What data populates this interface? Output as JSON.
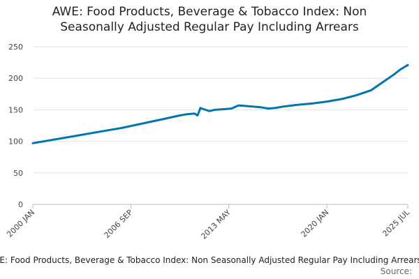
{
  "chart_data": {
    "type": "line",
    "title_line1": "AWE: Food Products, Beverage & Tobacco Index: Non",
    "title_line2": "Seasonally Adjusted Regular Pay Including Arrears",
    "xlabel": "",
    "ylabel": "",
    "ylim": [
      0,
      250
    ],
    "yticks": [
      0,
      50,
      100,
      150,
      200,
      250
    ],
    "xlim": [
      2000.0,
      2025.5
    ],
    "xticks": [
      {
        "label": "2000 JAN",
        "x": 2000.0
      },
      {
        "label": "2006 SEP",
        "x": 2006.667
      },
      {
        "label": "2013 MAY",
        "x": 2013.333
      },
      {
        "label": "2020 JAN",
        "x": 2020.0
      },
      {
        "label": "2025 JUL",
        "x": 2025.5
      }
    ],
    "grid": true,
    "series": [
      {
        "name": "AWE: Food Products, Beverage & Tobacco Index: Non Seasonally Adjusted Regular Pay Including Arrears",
        "color": "#0075b0",
        "points": [
          [
            2000.0,
            97
          ],
          [
            2000.5,
            99
          ],
          [
            2001.0,
            101
          ],
          [
            2002.0,
            105
          ],
          [
            2003.0,
            109
          ],
          [
            2004.0,
            113
          ],
          [
            2005.0,
            117
          ],
          [
            2006.0,
            121
          ],
          [
            2007.0,
            126
          ],
          [
            2008.0,
            131
          ],
          [
            2009.0,
            136
          ],
          [
            2010.0,
            141
          ],
          [
            2010.5,
            143
          ],
          [
            2011.0,
            144
          ],
          [
            2011.2,
            141
          ],
          [
            2011.4,
            153
          ],
          [
            2011.6,
            151
          ],
          [
            2012.0,
            148
          ],
          [
            2012.4,
            150
          ],
          [
            2013.0,
            151
          ],
          [
            2013.5,
            152
          ],
          [
            2013.8,
            155
          ],
          [
            2014.0,
            157
          ],
          [
            2014.5,
            156
          ],
          [
            2015.0,
            155
          ],
          [
            2015.5,
            154
          ],
          [
            2016.0,
            152
          ],
          [
            2016.5,
            153
          ],
          [
            2017.0,
            155
          ],
          [
            2018.0,
            158
          ],
          [
            2019.0,
            160
          ],
          [
            2020.0,
            163
          ],
          [
            2021.0,
            167
          ],
          [
            2022.0,
            173
          ],
          [
            2023.0,
            181
          ],
          [
            2024.0,
            197
          ],
          [
            2024.5,
            205
          ],
          [
            2025.0,
            214
          ],
          [
            2025.5,
            221
          ]
        ]
      }
    ]
  },
  "legend_text": "AWE: Food Products, Beverage & Tobacco Index: Non Seasonally Adjusted Regular Pay Including Arrears",
  "source_text": "Source:"
}
